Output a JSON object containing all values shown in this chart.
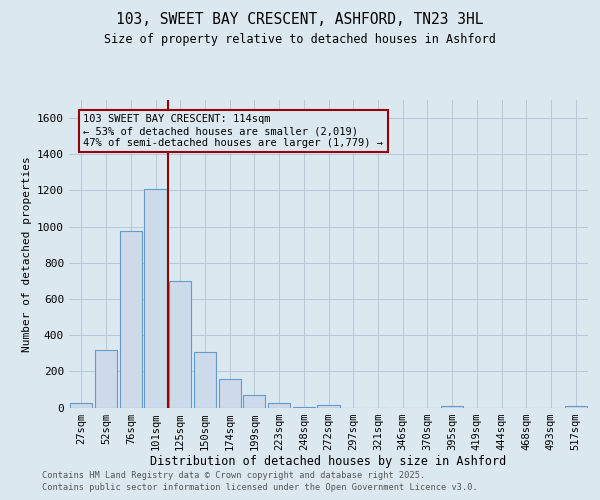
{
  "title": "103, SWEET BAY CRESCENT, ASHFORD, TN23 3HL",
  "subtitle": "Size of property relative to detached houses in Ashford",
  "xlabel": "Distribution of detached houses by size in Ashford",
  "ylabel": "Number of detached properties",
  "bin_labels": [
    "27sqm",
    "52sqm",
    "76sqm",
    "101sqm",
    "125sqm",
    "150sqm",
    "174sqm",
    "199sqm",
    "223sqm",
    "248sqm",
    "272sqm",
    "297sqm",
    "321sqm",
    "346sqm",
    "370sqm",
    "395sqm",
    "419sqm",
    "444sqm",
    "468sqm",
    "493sqm",
    "517sqm"
  ],
  "bar_heights": [
    25,
    320,
    975,
    1210,
    700,
    305,
    160,
    70,
    25,
    5,
    15,
    0,
    0,
    0,
    0,
    10,
    0,
    0,
    0,
    0,
    10
  ],
  "bar_color": "#ccdaea",
  "bar_edge_color": "#6699cc",
  "grid_color": "#b8c8d8",
  "background_color": "#dce8f0",
  "red_line_x": 3.5,
  "red_line_color": "#990000",
  "annotation_text": "103 SWEET BAY CRESCENT: 114sqm\n← 53% of detached houses are smaller (2,019)\n47% of semi-detached houses are larger (1,779) →",
  "ylim": [
    0,
    1700
  ],
  "yticks": [
    0,
    200,
    400,
    600,
    800,
    1000,
    1200,
    1400,
    1600
  ],
  "footer_line1": "Contains HM Land Registry data © Crown copyright and database right 2025.",
  "footer_line2": "Contains public sector information licensed under the Open Government Licence v3.0."
}
